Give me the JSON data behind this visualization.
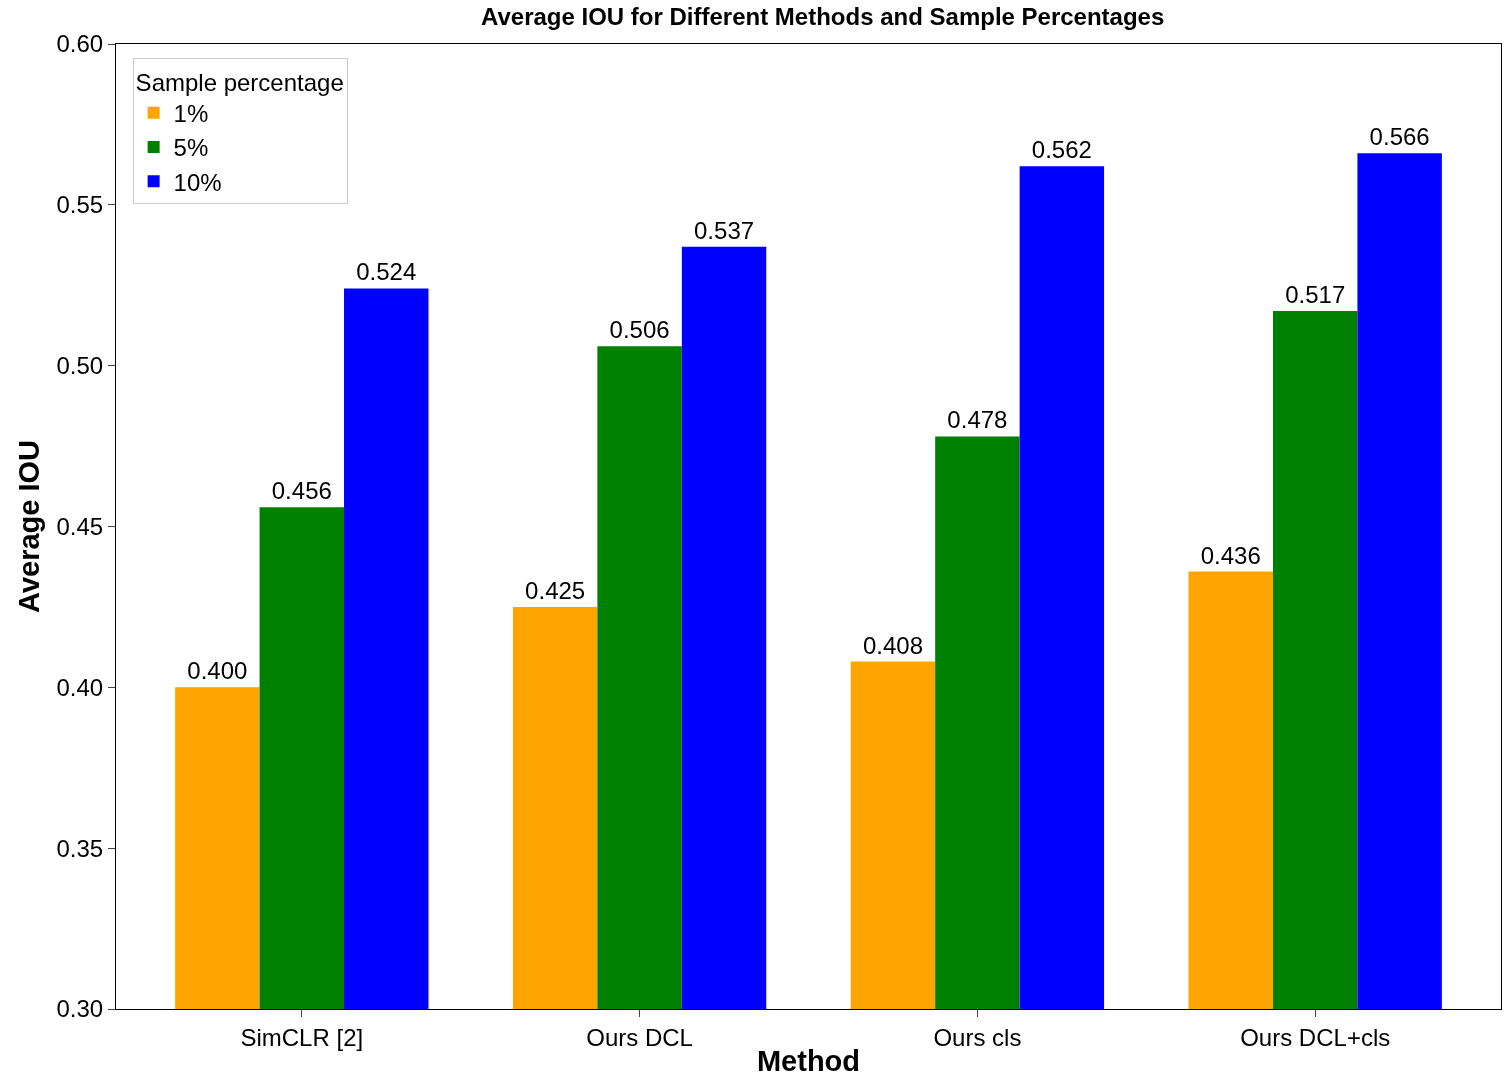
{
  "chart_data": {
    "type": "bar",
    "title": "Average IOU for Different Methods and Sample Percentages",
    "xlabel": "Method",
    "ylabel": "Average IOU",
    "legend_title": "Sample percentage",
    "categories": [
      "SimCLR [2]",
      "Ours DCL",
      "Ours cls",
      "Ours DCL+cls"
    ],
    "series": [
      {
        "name": "1%",
        "color": "#ffa500",
        "values": [
          0.4,
          0.425,
          0.408,
          0.436
        ],
        "value_labels": [
          "0.400",
          "0.425",
          "0.408",
          "0.436"
        ]
      },
      {
        "name": "5%",
        "color": "#008000",
        "values": [
          0.456,
          0.506,
          0.478,
          0.517
        ],
        "value_labels": [
          "0.456",
          "0.506",
          "0.478",
          "0.517"
        ]
      },
      {
        "name": "10%",
        "color": "#0000ff",
        "values": [
          0.524,
          0.537,
          0.562,
          0.566
        ],
        "value_labels": [
          "0.524",
          "0.537",
          "0.562",
          "0.566"
        ]
      }
    ],
    "ylim": [
      0.3,
      0.6
    ],
    "yticks": [
      {
        "value": 0.3,
        "label": "0.30"
      },
      {
        "value": 0.35,
        "label": "0.35"
      },
      {
        "value": 0.4,
        "label": "0.40"
      },
      {
        "value": 0.45,
        "label": "0.45"
      },
      {
        "value": 0.5,
        "label": "0.50"
      },
      {
        "value": 0.55,
        "label": "0.55"
      },
      {
        "value": 0.6,
        "label": "0.60"
      }
    ],
    "legend": "top left"
  }
}
